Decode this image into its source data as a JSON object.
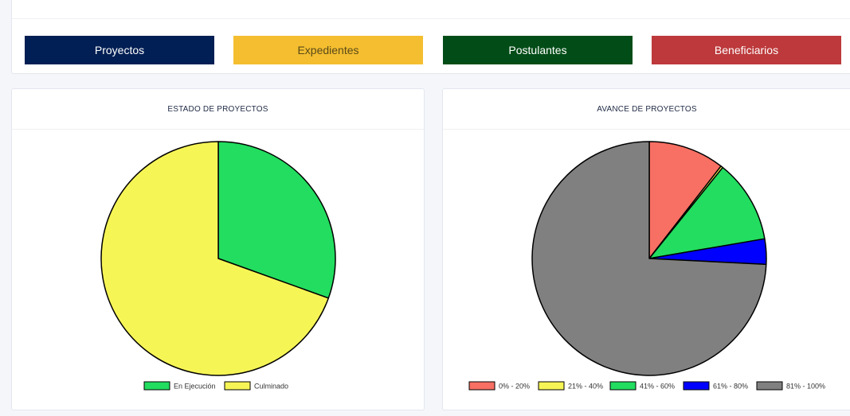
{
  "nav": {
    "buttons": [
      {
        "label": "Proyectos",
        "color": "#011f54",
        "text_color": "#ffffff"
      },
      {
        "label": "Expedientes",
        "color": "#f4be30",
        "text_color": "#5a4a18"
      },
      {
        "label": "Postulantes",
        "color": "#024d17",
        "text_color": "#ffffff"
      },
      {
        "label": "Beneficiarios",
        "color": "#bd393b",
        "text_color": "#ffffff"
      }
    ]
  },
  "chart_data": [
    {
      "type": "pie",
      "title": "ESTADO DE PROYECTOS",
      "categories": [
        "En Ejecución",
        "Culminado"
      ],
      "values": [
        30.5,
        69.5
      ],
      "colors": [
        "#22dd5f",
        "#f6f556"
      ],
      "legend": "bottom"
    },
    {
      "type": "pie",
      "title": "AVANCE DE PROYECTOS",
      "categories": [
        "0% - 20%",
        "21% - 40%",
        "41% - 60%",
        "61% - 80%",
        "81% - 100%"
      ],
      "values": [
        10.5,
        0.3,
        11.5,
        3.5,
        74.2
      ],
      "colors": [
        "#f86f63",
        "#f6f556",
        "#22dd5f",
        "#0000ff",
        "#808080"
      ],
      "legend": "bottom"
    }
  ]
}
